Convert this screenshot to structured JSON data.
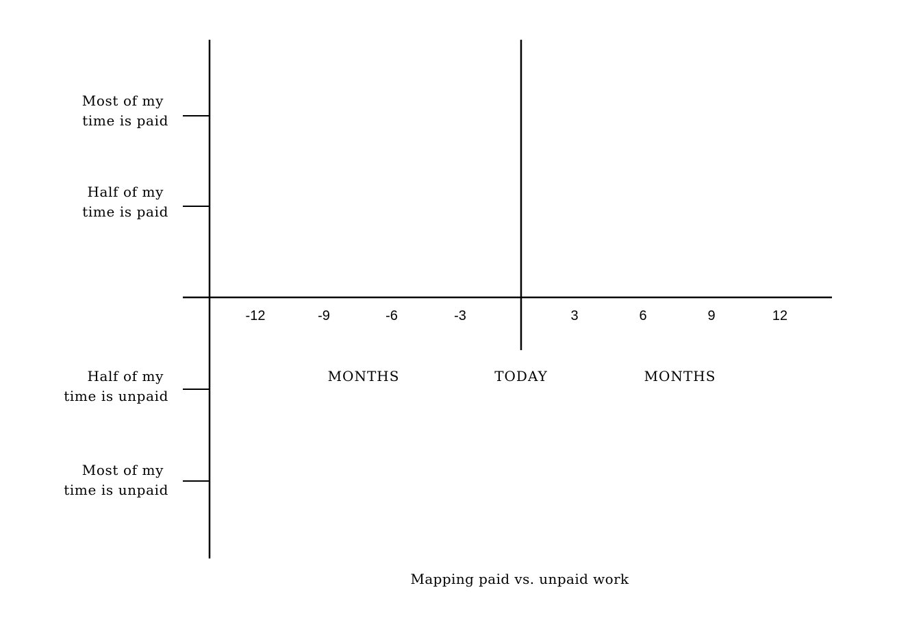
{
  "diagram": {
    "caption": "Mapping paid vs. unpaid work",
    "y_levels": [
      {
        "value": 2,
        "lines": [
          "Most of my",
          "time is paid"
        ]
      },
      {
        "value": 1,
        "lines": [
          "Half of my",
          "time is paid"
        ]
      },
      {
        "value": -1,
        "lines": [
          "Half of my",
          "time is unpaid"
        ]
      },
      {
        "value": -2,
        "lines": [
          "Most of my",
          "time is unpaid"
        ]
      }
    ],
    "x_ticks": [
      "-12",
      "-9",
      "-6",
      "-3",
      "3",
      "6",
      "9",
      "12"
    ],
    "x_tick_values": [
      -12,
      -9,
      -6,
      -3,
      3,
      6,
      9,
      12
    ],
    "today_label": "TODAY",
    "past_label": "MONTHS",
    "future_label": "MONTHS"
  }
}
